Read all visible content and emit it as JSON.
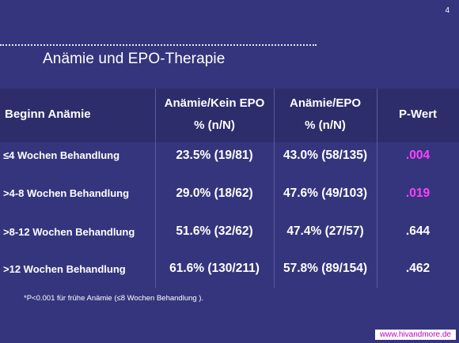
{
  "slide_number": "4",
  "title": "Anämie und EPO-Therapie",
  "table": {
    "header": {
      "col0": "Beginn Anämie",
      "col1_line1": "Anämie/Kein EPO",
      "col1_line2": "% (n/N)",
      "col2_line1": "Anämie/EPO",
      "col2_line2": "% (n/N)",
      "col3": "P-Wert"
    },
    "rows": [
      {
        "label": "≤4 Wochen Behandlung",
        "no_epo": "23.5% (19/81)",
        "epo": "43.0% (58/135)",
        "p": ".004"
      },
      {
        "label": ">4-8 Wochen Behandlung",
        "no_epo": "29.0% (18/62)",
        "epo": "47.6% (49/103)",
        "p": ".019"
      },
      {
        "label": ">8-12 Wochen Behandlung",
        "no_epo": "51.6% (32/62)",
        "epo": "47.4% (27/57)",
        "p": ".644"
      },
      {
        "label": ">12 Wochen Behandlung",
        "no_epo": "61.6% (130/211)",
        "epo": "57.8% (89/154)",
        "p": ".462"
      }
    ]
  },
  "footnote": "*P<0.001 für frühe Anämie (≤8 Wochen Behandlung ).",
  "url": "www.hivandmore.de",
  "colors": {
    "background": "#35357d",
    "header_band": "#2d2d6c",
    "significant_p": "#ff40ff",
    "text": "#ffffff",
    "url_text": "#c000c0"
  }
}
